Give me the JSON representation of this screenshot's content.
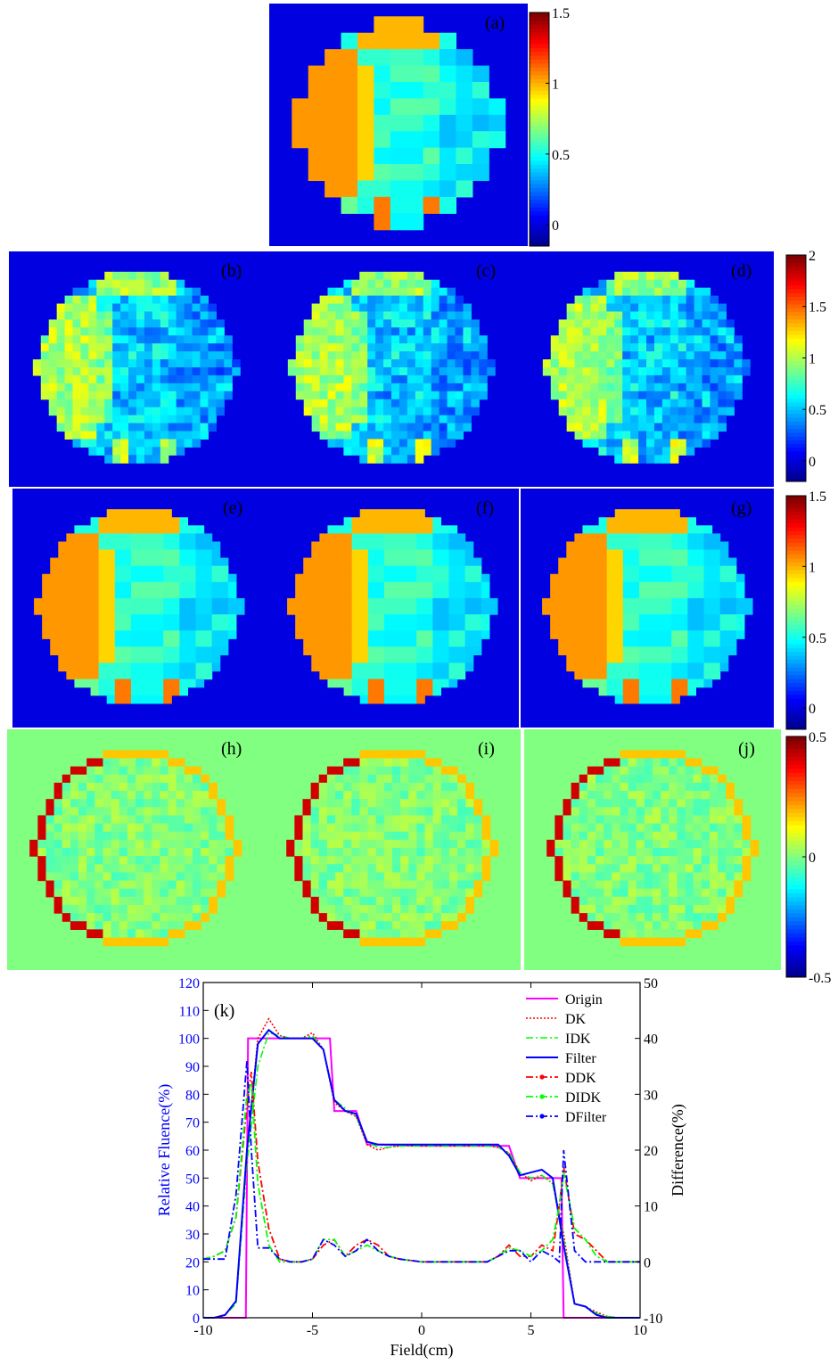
{
  "colors": {
    "jet": [
      "#00008f",
      "#0000ff",
      "#0080ff",
      "#00ffff",
      "#80ff80",
      "#ffff00",
      "#ff8000",
      "#ff0000",
      "#800000"
    ],
    "origin": "#ff00ff",
    "dk": "#ff0000",
    "idk": "#00ff00",
    "filter": "#0000ff",
    "axis_blue": "#0000ff"
  },
  "maps": {
    "row1": {
      "panels": [
        "(a)"
      ],
      "colorbar": {
        "min": -0.15,
        "max": 1.5,
        "ticks": [
          "1.5",
          "1",
          "0.5",
          "0"
        ]
      }
    },
    "row2": {
      "panels": [
        "(b)",
        "(c)",
        "(d)"
      ],
      "colorbar": {
        "min": -0.2,
        "max": 2.0,
        "ticks": [
          "2",
          "1.5",
          "1",
          "0.5",
          "0"
        ]
      }
    },
    "row3": {
      "panels": [
        "(e)",
        "(f)",
        "(g)"
      ],
      "colorbar": {
        "min": -0.15,
        "max": 1.5,
        "ticks": [
          "1.5",
          "1",
          "0.5",
          "0"
        ]
      }
    },
    "row4": {
      "panels": [
        "(h)",
        "(i)",
        "(j)"
      ],
      "colorbar": {
        "min": -0.5,
        "max": 0.5,
        "ticks": [
          "0.5",
          "0",
          "-0.5"
        ]
      }
    }
  },
  "chart_data": {
    "type": "line",
    "panel_label": "(k)",
    "xlabel": "Field(cm)",
    "ylabel": "Relative Fluence(%)",
    "y2label": "Difference(%)",
    "xlim": [
      -10,
      10
    ],
    "ylim": [
      0,
      120
    ],
    "y2lim": [
      -10,
      50
    ],
    "x_ticks": [
      "-10",
      "-5",
      "0",
      "5",
      "10"
    ],
    "y_ticks": [
      "0",
      "10",
      "20",
      "30",
      "40",
      "50",
      "60",
      "70",
      "80",
      "90",
      "100",
      "110",
      "120"
    ],
    "y2_ticks": [
      "-10",
      "0",
      "10",
      "20",
      "30",
      "40",
      "50"
    ],
    "legend_position": "top-right",
    "series": [
      {
        "name": "Origin",
        "axis": "left",
        "style": "solid",
        "color": "#ff00ff",
        "x": [
          -10,
          -8.05,
          -7.95,
          -7.5,
          -5,
          -4.2,
          -4,
          -3,
          -2.5,
          -2,
          0,
          2,
          4,
          4.5,
          5,
          5.5,
          6,
          6.4,
          6.5,
          10
        ],
        "y": [
          0,
          0,
          100,
          100,
          100,
          100,
          74,
          74,
          62,
          62,
          61.5,
          61.5,
          61.5,
          50,
          50,
          50,
          50,
          50,
          0,
          0
        ]
      },
      {
        "name": "DK",
        "axis": "left",
        "style": "dotted",
        "color": "#ff0000",
        "x": [
          -10,
          -9.5,
          -9,
          -8.5,
          -8,
          -7.5,
          -7,
          -6.5,
          -6,
          -5.5,
          -5,
          -4.5,
          -4,
          -3.5,
          -3,
          -2.5,
          -2,
          -1.5,
          -1,
          0,
          1,
          2,
          3,
          3.5,
          4,
          4.5,
          5,
          5.5,
          6,
          6.5,
          7,
          7.5,
          8,
          8.5,
          9,
          9.5,
          10
        ],
        "y": [
          0,
          0,
          1,
          6,
          60,
          100,
          107,
          101,
          100,
          100,
          102,
          96,
          77,
          74,
          72,
          62,
          60,
          61,
          61.5,
          61.5,
          61.5,
          61.5,
          61.5,
          61,
          59,
          52,
          49,
          51,
          48,
          30,
          5,
          4,
          2,
          0.5,
          0,
          0,
          0
        ]
      },
      {
        "name": "IDK",
        "axis": "left",
        "style": "dashdot",
        "color": "#00ff00",
        "x": [
          -10,
          -9.5,
          -9,
          -8.5,
          -8,
          -7.5,
          -7,
          -6.5,
          -6,
          -5.5,
          -5,
          -4.5,
          -4,
          -3.5,
          -3,
          -2.5,
          -2,
          -1.5,
          -1,
          0,
          1,
          2,
          3,
          3.5,
          4,
          4.5,
          5,
          5.5,
          6,
          6.5,
          7,
          7.5,
          8,
          8.5,
          9,
          9.5,
          10
        ],
        "y": [
          0,
          0,
          1,
          5,
          55,
          90,
          102,
          101,
          100,
          100,
          101,
          96,
          78,
          75,
          72,
          63,
          61,
          61,
          61.5,
          61.5,
          61.5,
          61.5,
          61.5,
          61,
          59,
          52,
          50,
          51,
          48,
          28,
          5,
          4,
          1.5,
          0.5,
          0,
          0,
          0
        ]
      },
      {
        "name": "Filter",
        "axis": "left",
        "style": "solid",
        "color": "#0000ff",
        "x": [
          -10,
          -9.5,
          -9,
          -8.5,
          -8,
          -7.5,
          -7,
          -6.5,
          -6,
          -5.5,
          -5,
          -4.5,
          -4,
          -3.5,
          -3,
          -2.5,
          -2,
          -1.5,
          -1,
          0,
          1,
          2,
          3,
          3.5,
          4,
          4.5,
          5,
          5.5,
          6,
          6.5,
          7,
          7.5,
          8,
          8.5,
          9,
          9.5,
          10
        ],
        "y": [
          0,
          0,
          1,
          6,
          60,
          98,
          103,
          100,
          100,
          100,
          100,
          96,
          78,
          74,
          73,
          63,
          62,
          62,
          62,
          62,
          62,
          62,
          62,
          62,
          58,
          51,
          52,
          53,
          50,
          26,
          5,
          4,
          1,
          0,
          0,
          0,
          0
        ]
      },
      {
        "name": "DDK",
        "axis": "right",
        "style": "dashdot-marker",
        "color": "#ff0000",
        "x": [
          -10,
          -9.5,
          -9,
          -8.5,
          -8,
          -7.8,
          -7.5,
          -7,
          -6.5,
          -6,
          -5.5,
          -5,
          -4.5,
          -4,
          -3.5,
          -3,
          -2.5,
          -2,
          -1.5,
          -1,
          0,
          1,
          2,
          3,
          3.5,
          4,
          4.5,
          5,
          5.5,
          6,
          6.3,
          6.5,
          7,
          7.5,
          8,
          8.5,
          9,
          9.5,
          10
        ],
        "y": [
          0.5,
          1,
          2,
          8,
          28,
          34,
          18,
          6,
          0.5,
          0,
          0,
          0.5,
          3,
          4,
          1,
          3,
          4,
          3,
          1,
          0.5,
          0,
          0,
          0,
          0,
          1,
          3,
          1,
          1,
          3,
          2,
          10,
          17,
          5,
          4,
          2,
          0,
          0,
          0,
          0
        ]
      },
      {
        "name": "DIDK",
        "axis": "right",
        "style": "dashdot-marker",
        "color": "#00ff00",
        "x": [
          -10,
          -9.5,
          -9,
          -8.5,
          -8,
          -7.8,
          -7.5,
          -7,
          -6.5,
          -6,
          -5.5,
          -5,
          -4.5,
          -4,
          -3.5,
          -3,
          -2.5,
          -2,
          -1.5,
          -1,
          0,
          1,
          2,
          3,
          3.5,
          4,
          4.5,
          5,
          5.5,
          6,
          6.3,
          6.5,
          7,
          7.5,
          8,
          8.5,
          9,
          9.5,
          10
        ],
        "y": [
          0.5,
          1,
          2,
          8,
          30,
          32,
          14,
          3,
          0,
          0,
          0,
          0.5,
          4,
          4,
          1,
          2,
          3,
          2,
          1,
          0.5,
          0,
          0,
          0,
          0,
          1,
          2.5,
          2,
          1,
          2,
          4,
          10,
          16,
          6,
          4,
          1,
          0,
          0,
          0,
          0
        ]
      },
      {
        "name": "DFilter",
        "axis": "right",
        "style": "dashdot-marker",
        "color": "#0000ff",
        "x": [
          -10,
          -9.5,
          -9,
          -8.5,
          -8,
          -7.8,
          -7.5,
          -7,
          -6.5,
          -6,
          -5.5,
          -5,
          -4.5,
          -4,
          -3.5,
          -3,
          -2.5,
          -2,
          -1.5,
          -1,
          0,
          1,
          2,
          3,
          3.5,
          4,
          4.5,
          5,
          5.5,
          6,
          6.3,
          6.5,
          7,
          7.5,
          8,
          8.5,
          9,
          9.5,
          10
        ],
        "y": [
          0.5,
          0.5,
          0.5,
          12,
          36,
          20,
          2.5,
          2.5,
          0.5,
          0,
          0,
          0.5,
          4,
          3,
          1,
          2,
          4,
          2,
          1,
          0.5,
          0,
          0,
          0,
          0,
          1,
          2,
          2,
          0,
          2,
          1,
          0,
          20,
          2,
          0,
          0,
          0,
          0,
          0,
          0
        ]
      }
    ]
  }
}
